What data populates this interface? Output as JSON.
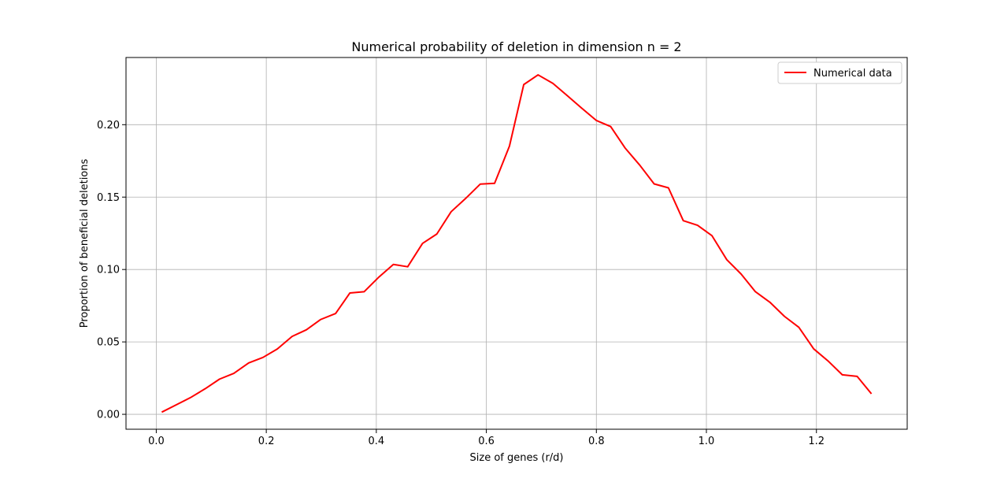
{
  "chart_data": {
    "type": "line",
    "title": "Numerical probability of deletion in dimension n = 2",
    "xlabel": "Size of genes (r/d)",
    "ylabel": "Proportion of beneficial deletions",
    "xlim": [
      -0.055,
      1.365
    ],
    "ylim": [
      -0.0103,
      0.2464
    ],
    "xticks": [
      0.0,
      0.2,
      0.4,
      0.6,
      0.8,
      1.0,
      1.2
    ],
    "xtick_labels": [
      "0.0",
      "0.2",
      "0.4",
      "0.6",
      "0.8",
      "1.0",
      "1.2"
    ],
    "yticks": [
      0.0,
      0.05,
      0.1,
      0.15,
      0.2
    ],
    "ytick_labels": [
      "0.00",
      "0.05",
      "0.10",
      "0.15",
      "0.20"
    ],
    "grid": true,
    "legend": "top-right",
    "series": [
      {
        "name": "Numerical data",
        "color": "#ff0000",
        "x": [
          0.01,
          0.036,
          0.062,
          0.089,
          0.115,
          0.141,
          0.168,
          0.194,
          0.22,
          0.247,
          0.273,
          0.299,
          0.326,
          0.352,
          0.378,
          0.405,
          0.431,
          0.457,
          0.484,
          0.51,
          0.536,
          0.563,
          0.589,
          0.615,
          0.642,
          0.668,
          0.694,
          0.721,
          0.747,
          0.773,
          0.8,
          0.826,
          0.852,
          0.879,
          0.905,
          0.931,
          0.958,
          0.984,
          1.01,
          1.037,
          1.063,
          1.089,
          1.116,
          1.142,
          1.168,
          1.195,
          1.221,
          1.247,
          1.274,
          1.3
        ],
        "y": [
          0.0015,
          0.0065,
          0.0115,
          0.0177,
          0.0243,
          0.0283,
          0.0355,
          0.0393,
          0.0451,
          0.0538,
          0.0584,
          0.0655,
          0.0696,
          0.0838,
          0.0847,
          0.0949,
          0.1035,
          0.1019,
          0.118,
          0.1245,
          0.1399,
          0.1493,
          0.159,
          0.1595,
          0.1852,
          0.2277,
          0.2344,
          0.2285,
          0.2201,
          0.2115,
          0.2029,
          0.1987,
          0.184,
          0.172,
          0.1591,
          0.1564,
          0.1337,
          0.1305,
          0.1234,
          0.1068,
          0.0969,
          0.0847,
          0.0772,
          0.0676,
          0.0601,
          0.0452,
          0.0369,
          0.0273,
          0.0262,
          0.0142
        ]
      }
    ]
  }
}
